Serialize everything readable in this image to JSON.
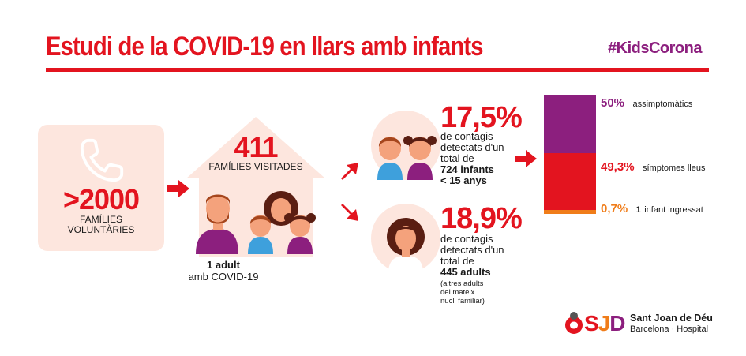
{
  "header": {
    "title": "Estudi de la COVID-19 en llars amb infants",
    "hashtag": "#KidsCorona"
  },
  "volunteers": {
    "icon": "phone-icon",
    "number": ">2000",
    "label_line1": "FAMÍLIES",
    "label_line2": "VOLUNTÀRIES"
  },
  "families": {
    "number": "411",
    "label": "FAMÍLIES VISITADES",
    "case_bold": "1 adult",
    "case_rest": "amb COVID-19"
  },
  "children": {
    "percent": "17,5%",
    "line1": "de contagis",
    "line2": "detectats d'un",
    "line3": "total de",
    "line4_bold": "724  infants",
    "line5_bold": "< 15 anys"
  },
  "adults": {
    "percent": "18,9%",
    "line1": "de contagis",
    "line2": "detectats d'un",
    "line3": "total de",
    "line4_bold": "445 adults",
    "note1": "(altres adults",
    "note2": "del mateix",
    "note3": "nucli familiar)"
  },
  "breakdown": {
    "segments": [
      {
        "percent": "50%",
        "value": 50,
        "label": "assimptomàtics",
        "color": "#8c1f7e"
      },
      {
        "percent": "49,3%",
        "value": 49.3,
        "label": "símptomes lleus",
        "color": "#e3141f"
      },
      {
        "percent": "0,7%",
        "value": 0.7,
        "label_bold": "1",
        "label": "infant ingressat",
        "color": "#f07d1a"
      }
    ]
  },
  "logo": {
    "mark": "SJD",
    "name": "Sant Joan de Déu",
    "subtitle": "Barcelona · Hospital"
  },
  "colors": {
    "red": "#e3141f",
    "purple": "#8c1f7e",
    "orange": "#f07d1a",
    "peach": "#fde6de"
  }
}
